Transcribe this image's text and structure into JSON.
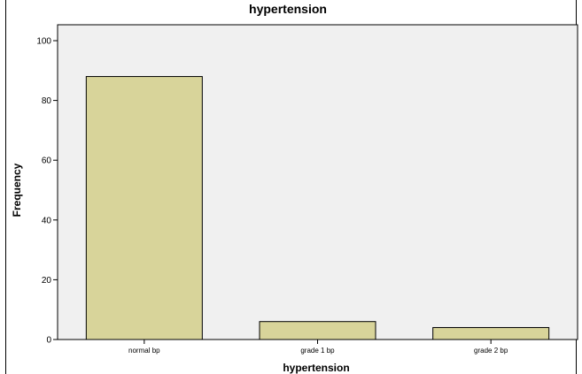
{
  "chart_data": {
    "type": "bar",
    "title": "hypertension",
    "xlabel": "hypertension",
    "ylabel": "Frequency",
    "categories": [
      "normal bp",
      "grade 1 bp",
      "grade 2 bp"
    ],
    "values": [
      88,
      6,
      4
    ],
    "ylim": [
      0,
      100
    ],
    "yticks": [
      0,
      20,
      40,
      60,
      80,
      100
    ],
    "grid": false,
    "bar_color": "#d8d49a",
    "plot_background": "#f0f0f0"
  }
}
